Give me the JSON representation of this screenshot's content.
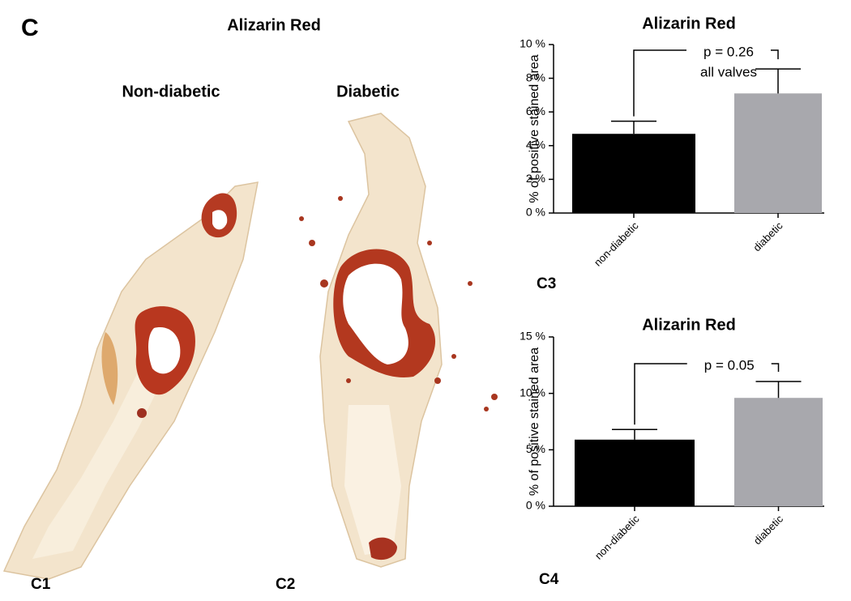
{
  "figure": {
    "letter": "C",
    "title": "Alizarin Red",
    "left_label": "Non-diabetic",
    "right_label": "Diabetic",
    "panels": [
      "C1",
      "C2",
      "C3",
      "C4"
    ]
  },
  "chart_data": [
    {
      "type": "bar",
      "title": "Alizarin Red",
      "ylabel": "% of positive stained area",
      "categories": [
        "non-diabetic",
        "diabetic"
      ],
      "values": [
        4.7,
        7.1
      ],
      "errors": [
        0.75,
        1.45
      ],
      "colors": [
        "#000000",
        "#a8a8ad"
      ],
      "annotations": [
        "p = 0.26",
        "all valves"
      ],
      "ylim": [
        0,
        10
      ],
      "yticks": [
        {
          "value": 0,
          "label": "0 %"
        },
        {
          "value": 2,
          "label": "2 %"
        },
        {
          "value": 4,
          "label": "4 %"
        },
        {
          "value": 6,
          "label": "6 %"
        },
        {
          "value": 8,
          "label": "8 %"
        },
        {
          "value": 10,
          "label": "10 %"
        }
      ]
    },
    {
      "type": "bar",
      "title": "Alizarin Red",
      "ylabel": "% of positive stained area",
      "categories": [
        "non-diabetic",
        "diabetic"
      ],
      "values": [
        5.9,
        9.6
      ],
      "errors": [
        0.9,
        1.45
      ],
      "colors": [
        "#000000",
        "#a8a8ad"
      ],
      "annotations": [
        "p = 0.05"
      ],
      "ylim": [
        0,
        15
      ],
      "yticks": [
        {
          "value": 0,
          "label": "0 %"
        },
        {
          "value": 5,
          "label": "5 %"
        },
        {
          "value": 10,
          "label": "10 %"
        },
        {
          "value": 15,
          "label": "15 %"
        }
      ]
    }
  ]
}
